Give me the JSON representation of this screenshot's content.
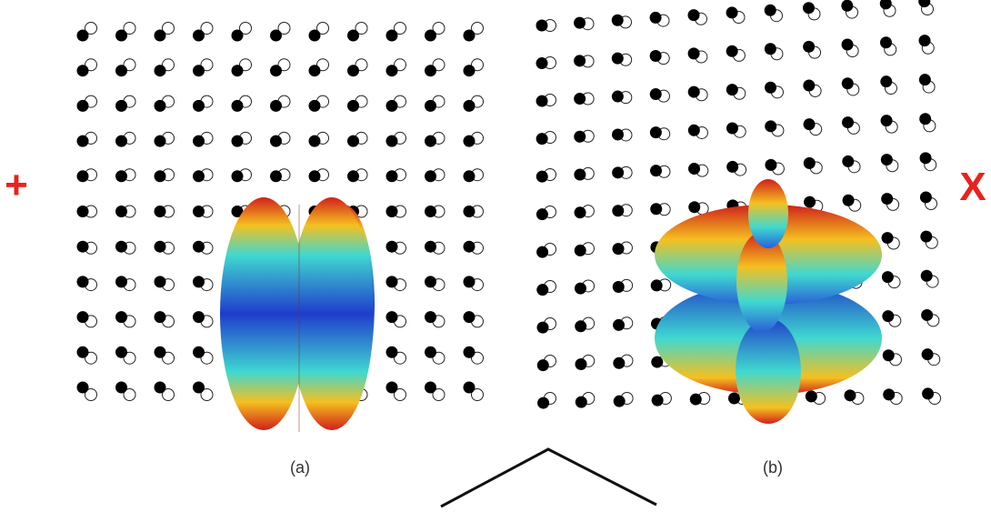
{
  "labels": {
    "left": "+",
    "right": "X"
  },
  "panels": [
    {
      "caption": "(a)"
    },
    {
      "caption": "(b)"
    }
  ]
}
